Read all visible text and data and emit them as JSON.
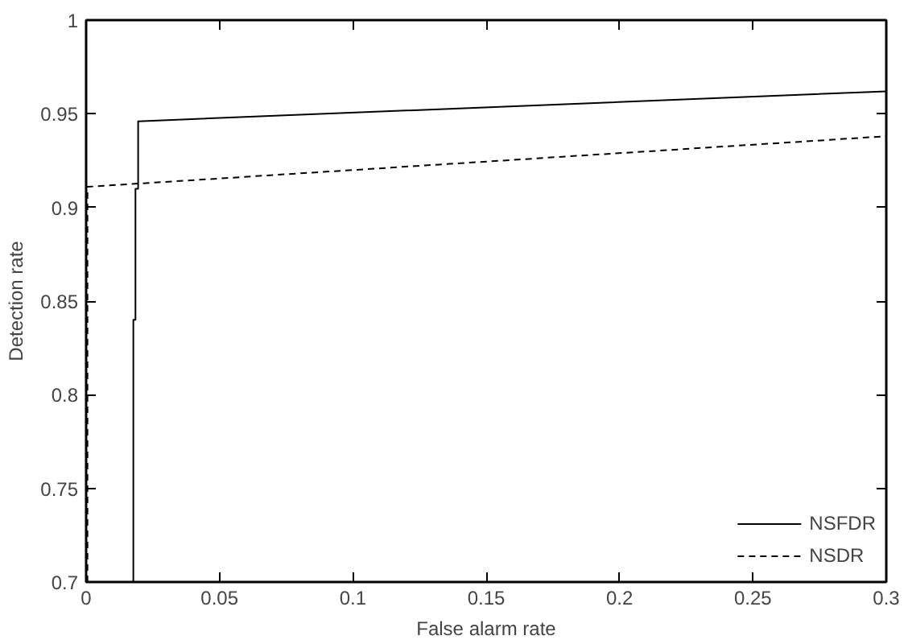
{
  "chart_data": {
    "type": "line",
    "xlabel": "False alarm rate",
    "ylabel": "Detection rate",
    "xlim": [
      0,
      0.3
    ],
    "ylim": [
      0.7,
      1
    ],
    "xticks": [
      0,
      0.05,
      0.1,
      0.15,
      0.2,
      0.25,
      0.3
    ],
    "yticks": [
      0.7,
      0.75,
      0.8,
      0.85,
      0.9,
      0.95,
      1
    ],
    "grid": false,
    "legend": "bottom right",
    "marker": "none",
    "series": [
      {
        "name": "NSFDR",
        "color": "#000000",
        "line_style": "solid",
        "x": [
          0.0177,
          0.0177,
          0.0185,
          0.0185,
          0.0195,
          0.0195,
          0.3
        ],
        "values": [
          0.7,
          0.84,
          0.84,
          0.91,
          0.91,
          0.946,
          0.962
        ]
      },
      {
        "name": "NSDR",
        "color": "#000000",
        "line_style": "dashed",
        "x": [
          0.0005,
          0.0005,
          0.3
        ],
        "values": [
          0.7,
          0.911,
          0.938
        ]
      }
    ]
  }
}
